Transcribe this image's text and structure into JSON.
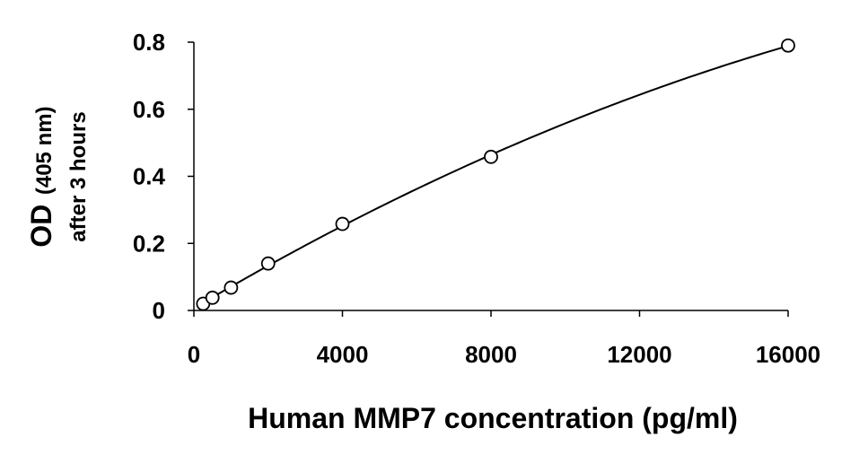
{
  "chart_data": {
    "type": "scatter",
    "title": "",
    "xlabel": "Human MMP7 concentration (pg/ml)",
    "ylabel_main": "OD",
    "ylabel_unit": "(405 nm)",
    "ylabel_line2": "after 3 hours",
    "xlim": [
      0,
      16000
    ],
    "ylim": [
      0,
      0.8
    ],
    "x_ticks": [
      0,
      4000,
      8000,
      12000,
      16000
    ],
    "x_tick_labels": [
      "0",
      "4000",
      "8000",
      "12000",
      "16000"
    ],
    "y_ticks": [
      0,
      0.2,
      0.4,
      0.6,
      0.8
    ],
    "y_tick_labels": [
      "0",
      "0.2",
      "0.4",
      "0.6",
      "0.8"
    ],
    "grid": false,
    "legend": "none",
    "series": [
      {
        "x": [
          250,
          500,
          1000,
          2000,
          4000,
          8000,
          16000
        ],
        "y": [
          0.02,
          0.038,
          0.068,
          0.14,
          0.258,
          0.458,
          0.79
        ],
        "marker": "open-circle",
        "fit_line": true
      }
    ],
    "colors": {
      "marker": "#000000",
      "line": "#000000",
      "axis": "#000000"
    }
  }
}
